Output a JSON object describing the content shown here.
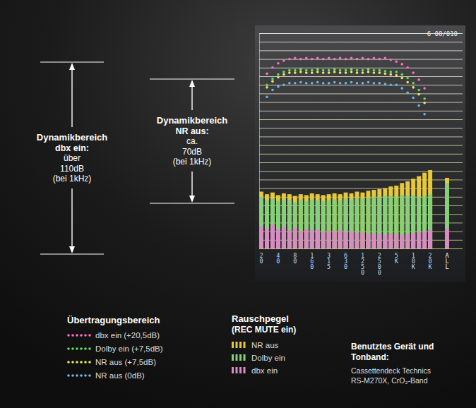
{
  "chart_data": {
    "type": "bar",
    "categories": [
      "20",
      null,
      null,
      "40",
      null,
      null,
      "80",
      null,
      null,
      "160",
      null,
      null,
      "315",
      null,
      null,
      "630",
      null,
      null,
      "1250",
      null,
      null,
      "2500",
      null,
      null,
      "5K",
      null,
      null,
      "10K",
      null,
      null,
      "20K",
      null,
      null,
      "ALL"
    ],
    "series": [
      {
        "name": "dbx ein (+20,5dB)",
        "type": "scatter",
        "marker": "circle",
        "color": "#ff6ec7",
        "values": [
          null,
          20.3,
          21.0,
          21.5,
          21.8,
          22.0,
          22.1,
          22.0,
          22.1,
          22.0,
          22.1,
          22.0,
          22.1,
          22.0,
          22.1,
          22.0,
          22.1,
          22.0,
          22.1,
          22.0,
          22.1,
          22.0,
          22.1,
          21.9,
          21.7,
          21.4,
          21.0,
          20.4,
          19.6,
          18.6,
          null,
          null,
          null,
          null
        ]
      },
      {
        "name": "Dolby ein (+7,5dB)",
        "type": "scatter",
        "marker": "circle",
        "color": "#5fe05a",
        "values": [
          null,
          19.0,
          19.7,
          20.2,
          20.5,
          20.7,
          20.7,
          20.8,
          20.7,
          20.7,
          20.8,
          20.7,
          20.7,
          20.8,
          20.7,
          20.7,
          20.8,
          20.7,
          20.7,
          20.8,
          20.7,
          20.7,
          20.6,
          20.5,
          20.5,
          20.2,
          19.8,
          19.2,
          18.4,
          17.4,
          null,
          null,
          null,
          null
        ]
      },
      {
        "name": "NR aus (+7,5dB)",
        "type": "scatter",
        "marker": "circle",
        "color": "#f0e65a",
        "values": [
          null,
          18.7,
          19.4,
          19.9,
          20.2,
          20.4,
          20.4,
          20.5,
          20.4,
          20.4,
          20.5,
          20.4,
          20.4,
          20.5,
          20.4,
          20.4,
          20.5,
          20.4,
          20.4,
          20.5,
          20.4,
          20.4,
          20.3,
          20.2,
          20.1,
          19.8,
          19.3,
          18.7,
          17.9,
          16.9,
          null,
          null,
          null,
          null
        ]
      },
      {
        "name": "NR aus (0dB)",
        "type": "scatter",
        "marker": "circle",
        "color": "#6ab8f0",
        "values": [
          null,
          17.6,
          18.4,
          18.8,
          19.0,
          19.2,
          19.2,
          19.3,
          19.2,
          19.2,
          19.3,
          19.2,
          19.2,
          19.3,
          19.2,
          19.2,
          19.3,
          19.2,
          19.2,
          19.3,
          19.2,
          19.2,
          19.1,
          19.0,
          19.0,
          18.6,
          18.1,
          17.5,
          16.6,
          15.6,
          null,
          null,
          null,
          null
        ]
      },
      {
        "name": "NR aus",
        "type": "bar",
        "color": "#e6c83c",
        "values": [
          6.6,
          6.3,
          6.5,
          6.2,
          6.4,
          6.3,
          6.1,
          6.3,
          6.2,
          6.4,
          6.3,
          6.2,
          6.3,
          6.4,
          6.3,
          6.5,
          6.4,
          6.6,
          6.5,
          6.7,
          6.8,
          6.9,
          7.0,
          7.2,
          7.3,
          7.6,
          7.8,
          8.1,
          8.4,
          8.8,
          9.1,
          null,
          null,
          8.2
        ]
      },
      {
        "name": "Dolby ein",
        "type": "bar",
        "color": "#86d07a",
        "values": [
          6.0,
          5.6,
          5.8,
          5.5,
          5.7,
          5.6,
          5.4,
          5.6,
          5.5,
          5.7,
          5.6,
          5.5,
          5.6,
          5.7,
          5.6,
          5.8,
          5.7,
          5.9,
          5.8,
          5.9,
          6.0,
          6.0,
          6.1,
          6.1,
          6.0,
          6.2,
          6.1,
          6.2,
          6.0,
          6.1,
          6.3,
          null,
          null,
          7.6
        ]
      },
      {
        "name": "dbx ein",
        "type": "bar",
        "color": "#d88cc4",
        "values": [
          2.6,
          2.3,
          2.8,
          2.2,
          2.5,
          2.1,
          2.4,
          2.0,
          2.3,
          2.1,
          2.2,
          1.9,
          2.1,
          2.0,
          2.2,
          1.9,
          2.0,
          1.8,
          1.9,
          1.7,
          1.8,
          1.7,
          1.6,
          1.8,
          1.7,
          1.6,
          1.7,
          1.8,
          1.9,
          2.0,
          2.2,
          null,
          null,
          2.4
        ]
      }
    ],
    "ylim": [
      0,
      25
    ],
    "yticks": [
      0,
      1,
      2,
      3,
      4,
      5,
      6,
      7,
      8,
      9,
      10,
      11,
      12,
      13,
      14,
      15,
      16,
      17,
      18,
      19,
      20,
      21,
      22,
      23,
      24,
      25
    ],
    "grid": true,
    "stacked": false,
    "tick_labels": "x",
    "legend": "bottom",
    "legend_groups": [
      {
        "title": "Übertragungsbereich",
        "type": "scatter"
      },
      {
        "title": "Rauschpegel",
        "subtitle": "(REC MUTE ein)",
        "type": "bar"
      }
    ],
    "screen_label": "6 08/010",
    "annotations": [
      {
        "title": "Dynamikbereich",
        "lines": [
          "dbx ein:",
          "über",
          "110dB",
          "(bei 1kHz)"
        ]
      },
      {
        "title": "Dynamikbereich",
        "lines": [
          "NR aus:",
          "ca.",
          "70dB",
          "(bei 1kHz)"
        ]
      }
    ],
    "notes": {
      "title": "Benutztes Gerät und Tonband:",
      "lines": [
        "Cassettendeck Technics",
        "RS-M270X, CrO₂-Band"
      ]
    }
  }
}
